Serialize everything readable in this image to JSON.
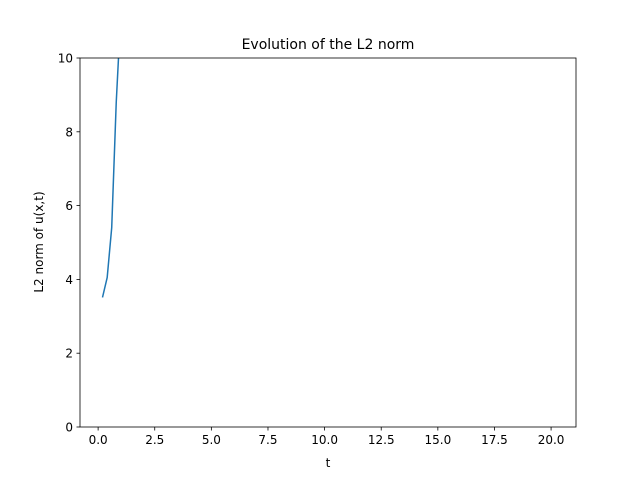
{
  "chart_data": {
    "type": "line",
    "title": "Evolution of the L2 norm",
    "xlabel": "t",
    "ylabel": "L2 norm of u(x,t)",
    "xlim": [
      -0.8,
      21.1
    ],
    "ylim": [
      0,
      10
    ],
    "xticks": [
      0.0,
      2.5,
      5.0,
      7.5,
      10.0,
      12.5,
      15.0,
      17.5,
      20.0
    ],
    "xtick_labels": [
      "0.0",
      "2.5",
      "5.0",
      "7.5",
      "10.0",
      "12.5",
      "15.0",
      "17.5",
      "20.0"
    ],
    "yticks": [
      0,
      2,
      4,
      6,
      8,
      10
    ],
    "ytick_labels": [
      "0",
      "2",
      "4",
      "6",
      "8",
      "10"
    ],
    "grid": false,
    "series": [
      {
        "color": "#1f77b4",
        "x": [
          0.2,
          0.4,
          0.6,
          0.8,
          0.9
        ],
        "y": [
          3.53,
          4.05,
          5.4,
          8.8,
          10.0
        ]
      }
    ]
  }
}
